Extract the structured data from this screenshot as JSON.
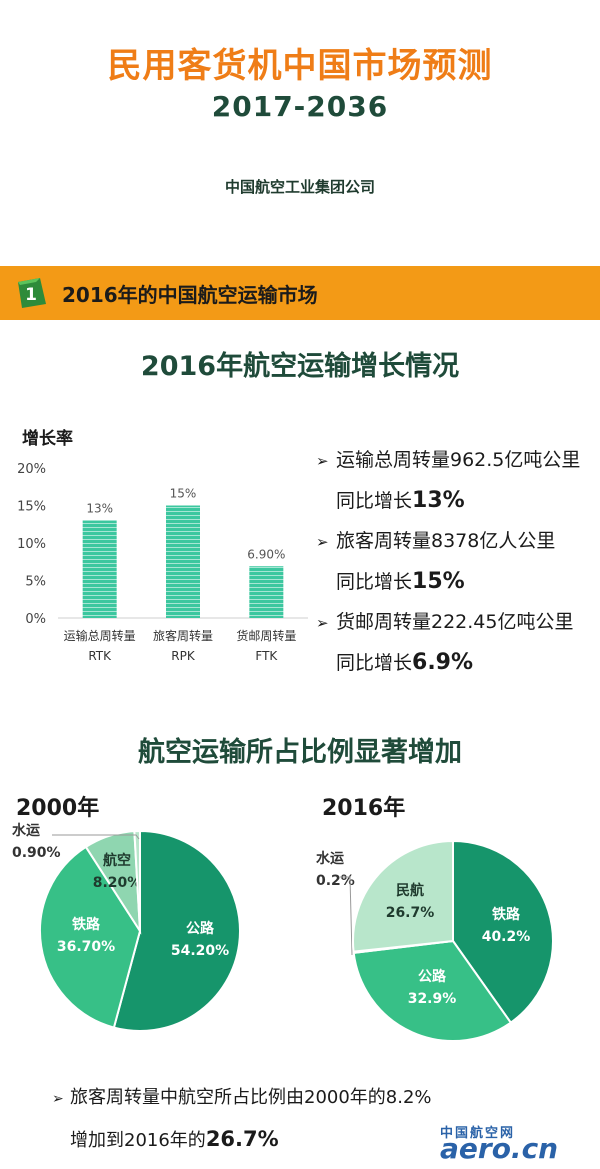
{
  "header": {
    "title": "民用客货机中国市场预测",
    "years": "2017-2036",
    "publisher": "中国航空工业集团公司"
  },
  "section": {
    "number": "1",
    "title": "2016年的中国航空运输市场"
  },
  "growth_heading": "2016年航空运输增长情况",
  "bullets": [
    {
      "line1": "运输总周转量962.5亿吨公里",
      "prefix": "同比增长",
      "value": "13%"
    },
    {
      "line1": "旅客周转量8378亿人公里",
      "prefix": "同比增长",
      "value": "15%"
    },
    {
      "line1": "货邮周转量222.45亿吨公里",
      "prefix": "同比增长",
      "value": "6.9%"
    }
  ],
  "share_heading": "航空运输所占比例显著增加",
  "bottom_note": {
    "line1": "旅客周转量中航空所占比例由2000年的8.2%",
    "line2_prefix": "增加到2016年的",
    "line2_value": "26.7%"
  },
  "watermark": {
    "small": "中国航空网",
    "big": "aero.cn"
  },
  "colors": {
    "orange": "#ef7d17",
    "bar": "#3cc79f",
    "dark_green": "#16956b",
    "mid_green": "#37c087",
    "light_green": "#8fd6b0",
    "pale_green": "#b8e6cb"
  },
  "chart_data": [
    {
      "type": "bar",
      "ylabel": "增长率",
      "ylim": [
        0,
        20
      ],
      "yticks": [
        "0%",
        "5%",
        "10%",
        "15%",
        "20%"
      ],
      "categories": [
        {
          "name": "运输总周转量",
          "code": "RTK"
        },
        {
          "name": "旅客周转量",
          "code": "RPK"
        },
        {
          "name": "货邮周转量",
          "code": "FTK"
        }
      ],
      "values": [
        13,
        15,
        6.9
      ],
      "data_labels": [
        "13%",
        "15%",
        "6.90%"
      ]
    },
    {
      "type": "pie",
      "title": "2000年",
      "slices": [
        {
          "name": "公路",
          "value": 54.2,
          "label": "54.20%",
          "color": "#16956b"
        },
        {
          "name": "铁路",
          "value": 36.7,
          "label": "36.70%",
          "color": "#37c087"
        },
        {
          "name": "航空",
          "value": 8.2,
          "label": "8.20%",
          "color": "#8fd6b0"
        },
        {
          "name": "水运",
          "value": 0.9,
          "label": "0.90%",
          "color": "#b8e6cb"
        }
      ]
    },
    {
      "type": "pie",
      "title": "2016年",
      "slices": [
        {
          "name": "铁路",
          "value": 40.2,
          "label": "40.2%",
          "color": "#16956b"
        },
        {
          "name": "公路",
          "value": 32.9,
          "label": "32.9%",
          "color": "#37c087"
        },
        {
          "name": "水运",
          "value": 0.2,
          "label": "0.2%",
          "color": "#8fd6b0"
        },
        {
          "name": "民航",
          "value": 26.7,
          "label": "26.7%",
          "color": "#b8e6cb"
        }
      ]
    }
  ]
}
